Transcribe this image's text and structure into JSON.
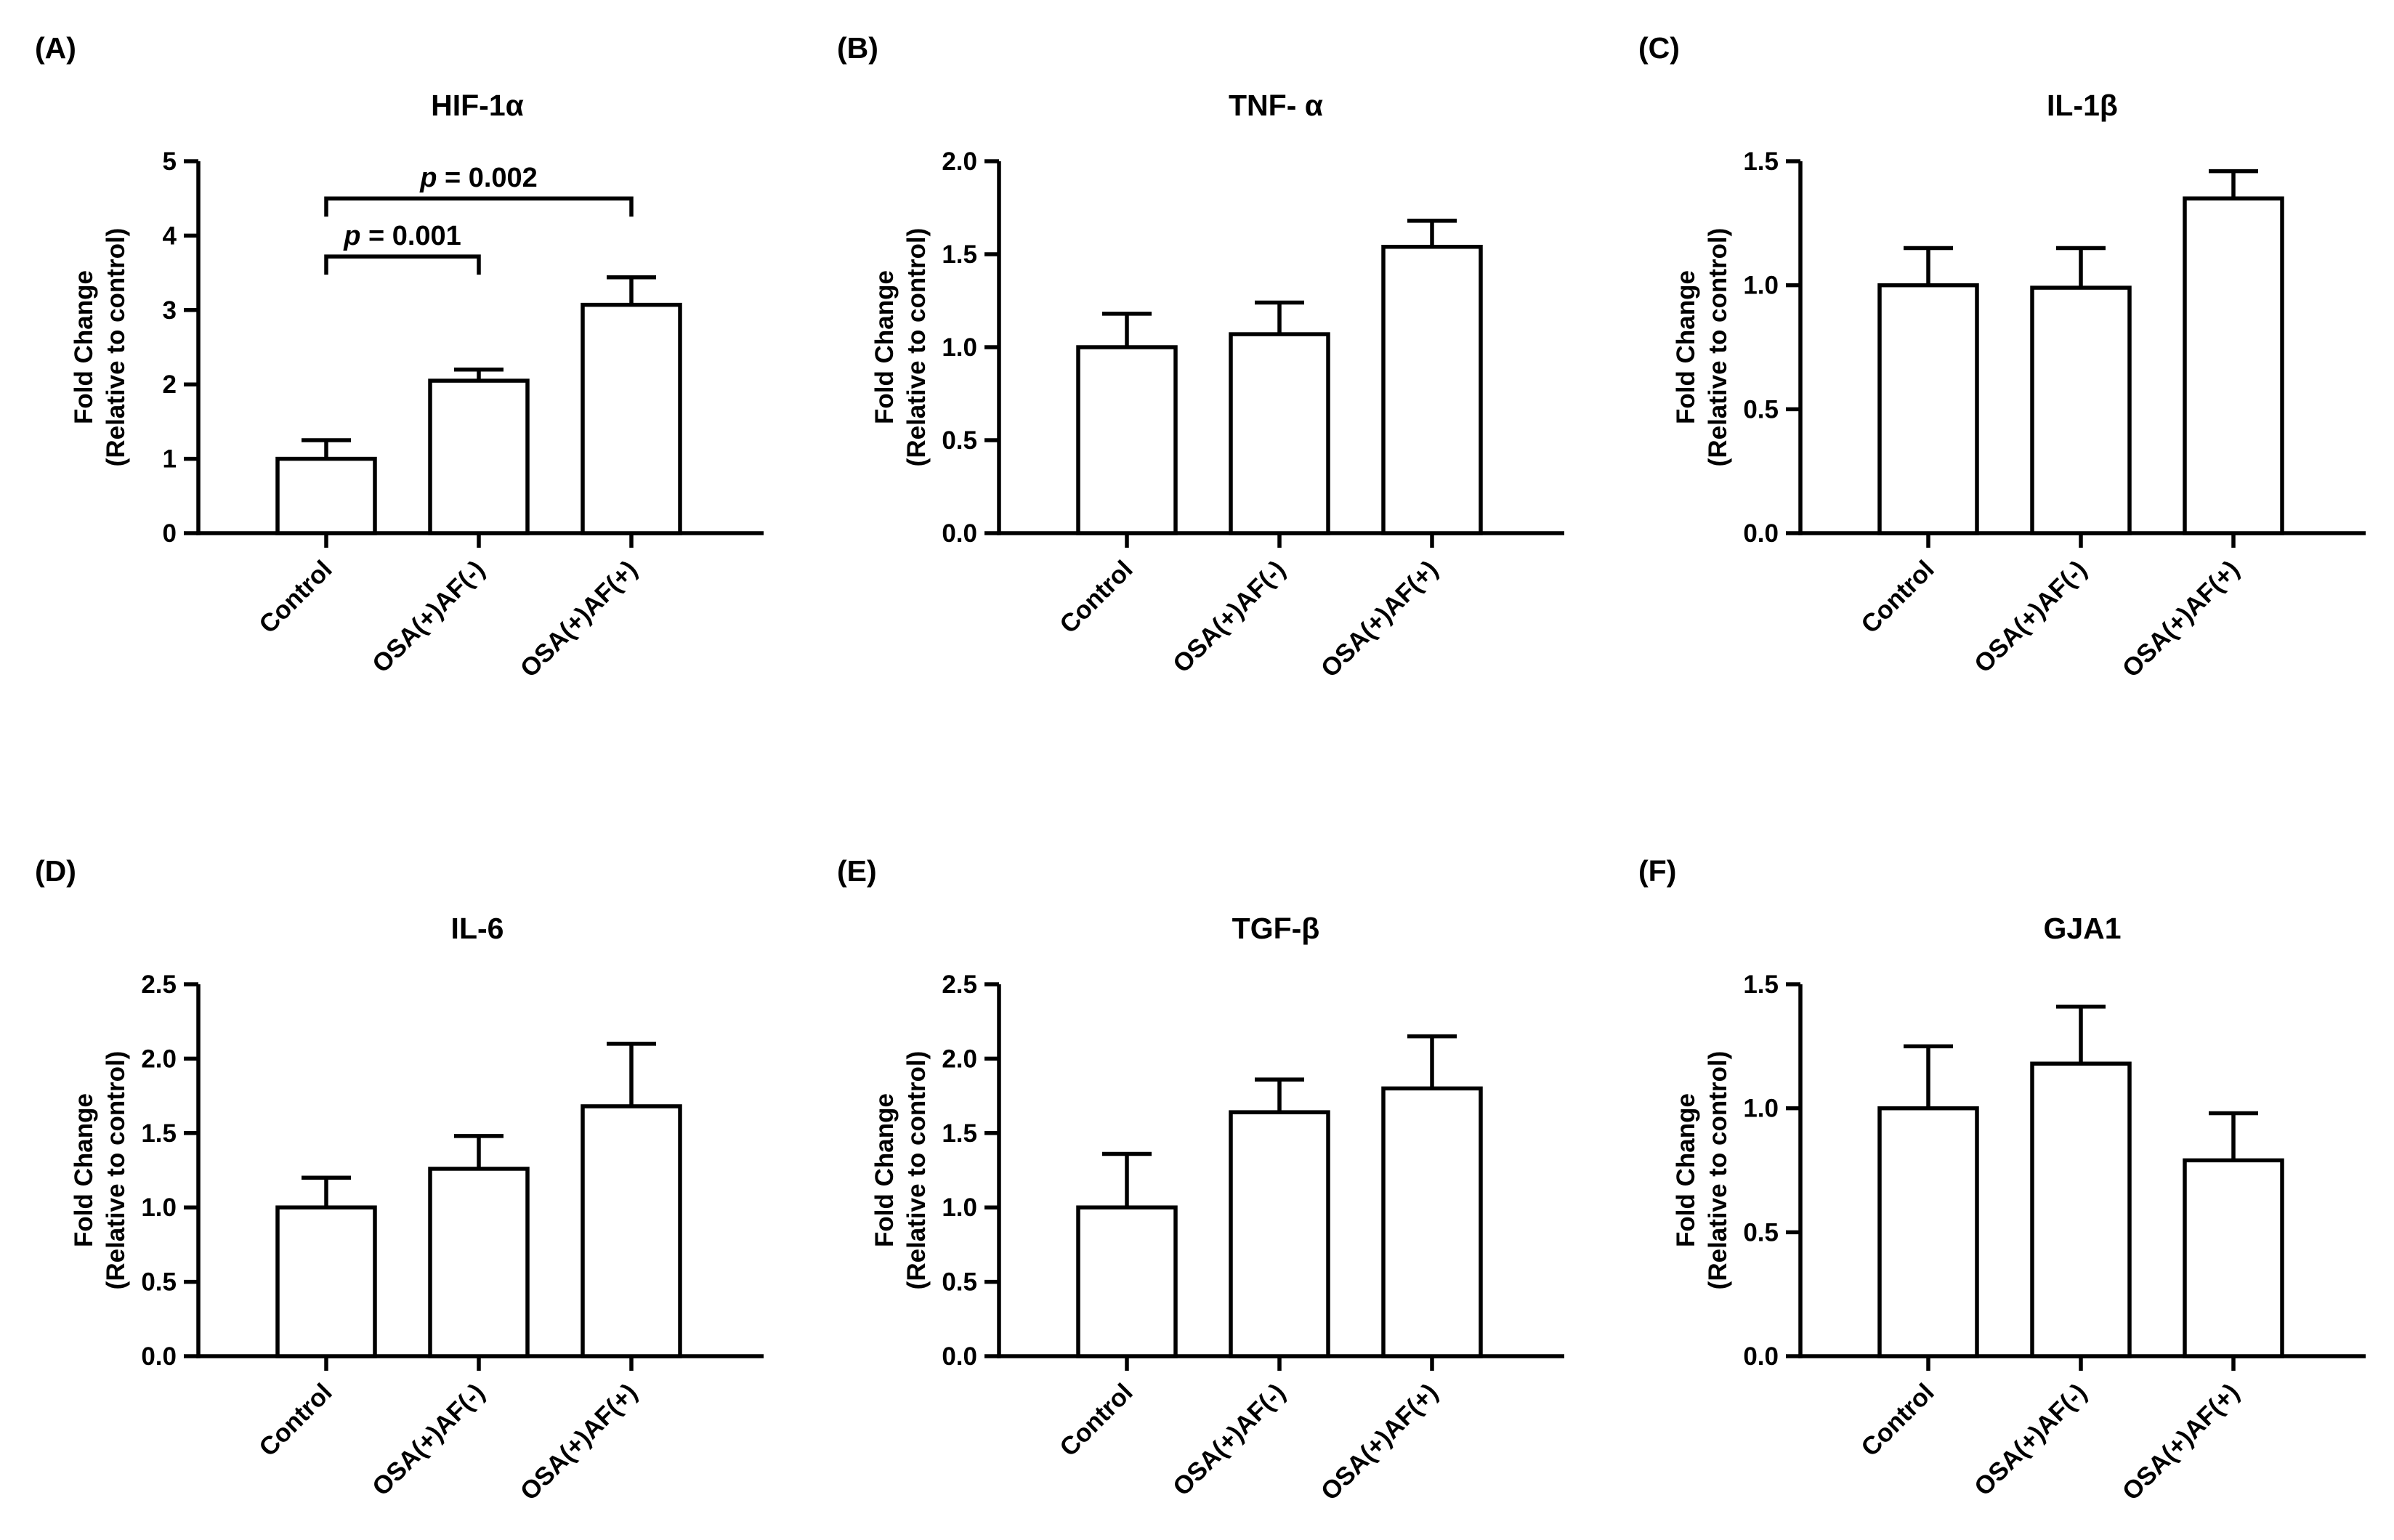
{
  "figure": {
    "background": "#ffffff",
    "ink": "#000000",
    "bar_fill": "#ffffff"
  },
  "chart_data": [
    {
      "panel_label": "(A)",
      "type": "bar",
      "title": "HIF-1α",
      "ylabel_line1": "Fold Change",
      "ylabel_line2": "(Relative to control)",
      "xlabel": "",
      "categories": [
        "Control",
        "OSA(+)AF(-)",
        "OSA(+)AF(+)"
      ],
      "values": [
        1.0,
        2.05,
        3.07
      ],
      "errors": [
        0.25,
        0.15,
        0.37
      ],
      "ylim": [
        0,
        5
      ],
      "yticks": [
        "0",
        "1",
        "2",
        "3",
        "4",
        "5"
      ],
      "significance": [
        {
          "from": 0,
          "to": 1,
          "p_label": "p",
          "p_value": " = 0.001",
          "level": 3.72
        },
        {
          "from": 0,
          "to": 2,
          "p_label": "p",
          "p_value": " = 0.002",
          "level": 4.5
        }
      ]
    },
    {
      "panel_label": "(B)",
      "type": "bar",
      "title": "TNF- α",
      "ylabel_line1": "Fold Change",
      "ylabel_line2": "(Relative to control)",
      "xlabel": "",
      "categories": [
        "Control",
        "OSA(+)AF(-)",
        "OSA(+)AF(+)"
      ],
      "values": [
        1.0,
        1.07,
        1.54
      ],
      "errors": [
        0.18,
        0.17,
        0.14
      ],
      "ylim": [
        0,
        2.0
      ],
      "yticks": [
        "0.0",
        "0.5",
        "1.0",
        "1.5",
        "2.0"
      ],
      "significance": []
    },
    {
      "panel_label": "(C)",
      "type": "bar",
      "title": "IL-1β",
      "ylabel_line1": "Fold Change",
      "ylabel_line2": "(Relative to control)",
      "xlabel": "",
      "categories": [
        "Control",
        "OSA(+)AF(-)",
        "OSA(+)AF(+)"
      ],
      "values": [
        1.0,
        0.99,
        1.35
      ],
      "errors": [
        0.15,
        0.16,
        0.11
      ],
      "ylim": [
        0,
        1.5
      ],
      "yticks": [
        "0.0",
        "0.5",
        "1.0",
        "1.5"
      ],
      "significance": []
    },
    {
      "panel_label": "(D)",
      "type": "bar",
      "title": "IL-6",
      "ylabel_line1": "Fold Change",
      "ylabel_line2": "(Relative to control)",
      "xlabel": "",
      "categories": [
        "Control",
        "OSA(+)AF(-)",
        "OSA(+)AF(+)"
      ],
      "values": [
        1.0,
        1.26,
        1.68
      ],
      "errors": [
        0.2,
        0.22,
        0.42
      ],
      "ylim": [
        0,
        2.5
      ],
      "yticks": [
        "0.0",
        "0.5",
        "1.0",
        "1.5",
        "2.0",
        "2.5"
      ],
      "significance": []
    },
    {
      "panel_label": "(E)",
      "type": "bar",
      "title": "TGF-β",
      "ylabel_line1": "Fold Change",
      "ylabel_line2": "(Relative to control)",
      "xlabel": "",
      "categories": [
        "Control",
        "OSA(+)AF(-)",
        "OSA(+)AF(+)"
      ],
      "values": [
        1.0,
        1.64,
        1.8
      ],
      "errors": [
        0.36,
        0.22,
        0.35
      ],
      "ylim": [
        0,
        2.5
      ],
      "yticks": [
        "0.0",
        "0.5",
        "1.0",
        "1.5",
        "2.0",
        "2.5"
      ],
      "significance": []
    },
    {
      "panel_label": "(F)",
      "type": "bar",
      "title": "GJA1",
      "ylabel_line1": "Fold Change",
      "ylabel_line2": "(Relative to control)",
      "xlabel": "",
      "categories": [
        "Control",
        "OSA(+)AF(-)",
        "OSA(+)AF(+)"
      ],
      "values": [
        1.0,
        1.18,
        0.79
      ],
      "errors": [
        0.25,
        0.23,
        0.19
      ],
      "ylim": [
        0,
        1.5
      ],
      "yticks": [
        "0.0",
        "0.5",
        "1.0",
        "1.5"
      ],
      "significance": []
    }
  ]
}
